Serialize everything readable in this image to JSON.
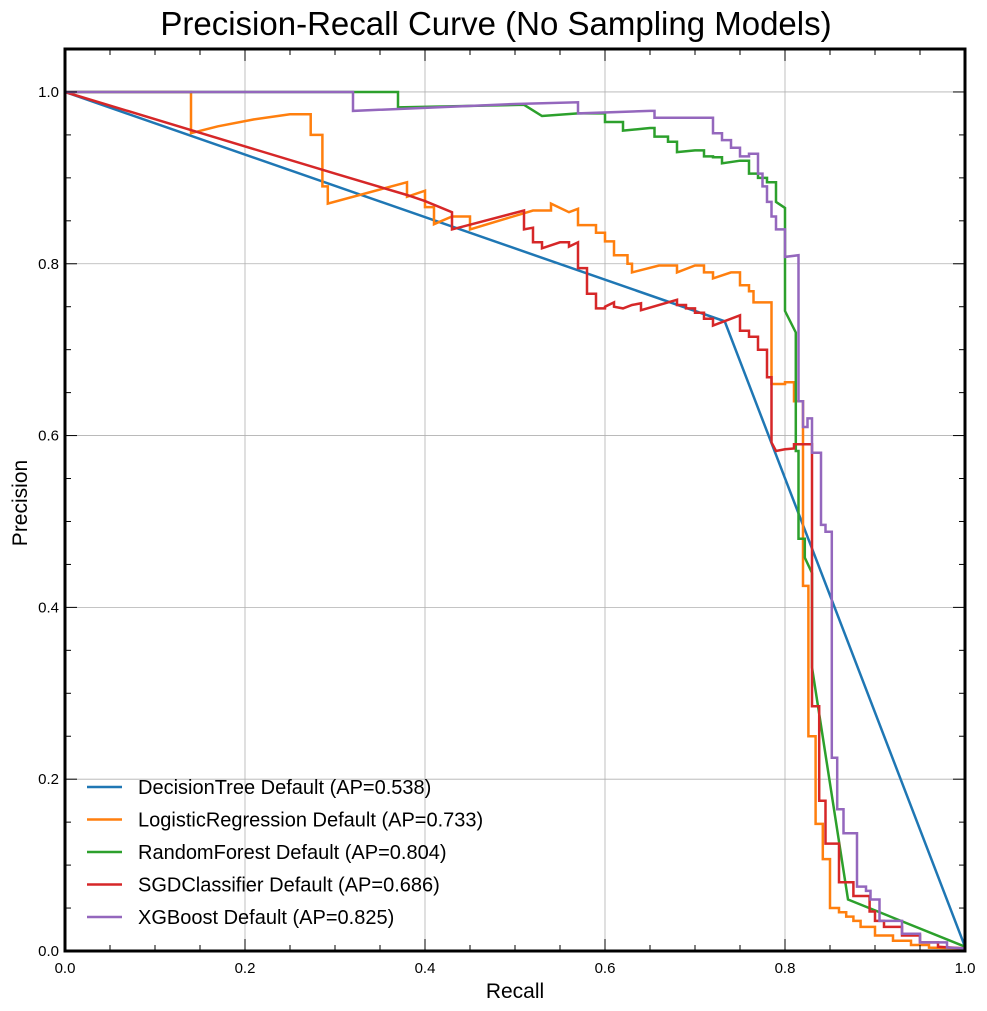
{
  "chart_data": {
    "type": "line",
    "title": "Precision-Recall Curve (No Sampling Models)",
    "xlabel": "Recall",
    "ylabel": "Precision",
    "xlim": [
      0,
      1
    ],
    "ylim": [
      0,
      1.05
    ],
    "xticks": [
      0.0,
      0.2,
      0.4,
      0.6,
      0.8,
      1.0
    ],
    "xtick_labels": [
      "0.0",
      "0.2",
      "0.4",
      "0.6",
      "0.8",
      "1.0"
    ],
    "yticks": [
      0.0,
      0.2,
      0.4,
      0.6,
      0.8,
      1.0
    ],
    "ytick_labels": [
      "0.0",
      "0.2",
      "0.4",
      "0.6",
      "0.8",
      "1.0"
    ],
    "grid": true,
    "legend_position": "lower-left",
    "series": [
      {
        "name": "DecisionTree Default (AP=0.538)",
        "color": "#1f77b4",
        "step": false,
        "points": [
          [
            0,
            1.0
          ],
          [
            0.733,
            0.733
          ],
          [
            1.0,
            0.005
          ]
        ]
      },
      {
        "name": "LogisticRegression Default (AP=0.733)",
        "color": "#ff7f0e",
        "step": true,
        "points": [
          [
            0,
            1.0
          ],
          [
            0.14,
            1.0
          ],
          [
            0.14,
            0.952
          ],
          [
            0.17,
            0.96
          ],
          [
            0.21,
            0.968
          ],
          [
            0.25,
            0.974
          ],
          [
            0.273,
            0.974
          ],
          [
            0.273,
            0.95
          ],
          [
            0.286,
            0.95
          ],
          [
            0.286,
            0.89
          ],
          [
            0.292,
            0.89
          ],
          [
            0.292,
            0.87
          ],
          [
            0.38,
            0.895
          ],
          [
            0.38,
            0.878
          ],
          [
            0.4,
            0.885
          ],
          [
            0.4,
            0.866
          ],
          [
            0.41,
            0.866
          ],
          [
            0.41,
            0.846
          ],
          [
            0.43,
            0.855
          ],
          [
            0.45,
            0.855
          ],
          [
            0.45,
            0.84
          ],
          [
            0.52,
            0.862
          ],
          [
            0.54,
            0.862
          ],
          [
            0.54,
            0.87
          ],
          [
            0.56,
            0.86
          ],
          [
            0.57,
            0.864
          ],
          [
            0.57,
            0.845
          ],
          [
            0.59,
            0.845
          ],
          [
            0.59,
            0.836
          ],
          [
            0.6,
            0.836
          ],
          [
            0.6,
            0.826
          ],
          [
            0.61,
            0.826
          ],
          [
            0.61,
            0.81
          ],
          [
            0.625,
            0.81
          ],
          [
            0.625,
            0.8
          ],
          [
            0.63,
            0.8
          ],
          [
            0.63,
            0.79
          ],
          [
            0.66,
            0.798
          ],
          [
            0.68,
            0.798
          ],
          [
            0.68,
            0.79
          ],
          [
            0.7,
            0.798
          ],
          [
            0.71,
            0.798
          ],
          [
            0.71,
            0.79
          ],
          [
            0.72,
            0.79
          ],
          [
            0.72,
            0.783
          ],
          [
            0.74,
            0.79
          ],
          [
            0.75,
            0.79
          ],
          [
            0.75,
            0.775
          ],
          [
            0.76,
            0.775
          ],
          [
            0.76,
            0.768
          ],
          [
            0.765,
            0.768
          ],
          [
            0.765,
            0.755
          ],
          [
            0.785,
            0.755
          ],
          [
            0.785,
            0.66
          ],
          [
            0.8,
            0.66
          ],
          [
            0.8,
            0.662
          ],
          [
            0.81,
            0.662
          ],
          [
            0.81,
            0.64
          ],
          [
            0.82,
            0.64
          ],
          [
            0.82,
            0.425
          ],
          [
            0.826,
            0.425
          ],
          [
            0.826,
            0.25
          ],
          [
            0.834,
            0.25
          ],
          [
            0.834,
            0.148
          ],
          [
            0.842,
            0.148
          ],
          [
            0.842,
            0.107
          ],
          [
            0.85,
            0.107
          ],
          [
            0.85,
            0.05
          ],
          [
            0.86,
            0.05
          ],
          [
            0.86,
            0.045
          ],
          [
            0.868,
            0.045
          ],
          [
            0.868,
            0.04
          ],
          [
            0.876,
            0.04
          ],
          [
            0.876,
            0.035
          ],
          [
            0.884,
            0.035
          ],
          [
            0.884,
            0.028
          ],
          [
            0.9,
            0.028
          ],
          [
            0.9,
            0.018
          ],
          [
            0.92,
            0.018
          ],
          [
            0.92,
            0.012
          ],
          [
            0.94,
            0.012
          ],
          [
            0.94,
            0.007
          ],
          [
            0.96,
            0.007
          ],
          [
            0.96,
            0.004
          ],
          [
            1.0,
            0.003
          ]
        ]
      },
      {
        "name": "RandomForest Default (AP=0.804)",
        "color": "#2ca02c",
        "step": true,
        "points": [
          [
            0,
            1.0
          ],
          [
            0.37,
            1.0
          ],
          [
            0.37,
            0.982
          ],
          [
            0.51,
            0.985
          ],
          [
            0.53,
            0.972
          ],
          [
            0.57,
            0.975
          ],
          [
            0.6,
            0.975
          ],
          [
            0.6,
            0.965
          ],
          [
            0.62,
            0.965
          ],
          [
            0.62,
            0.955
          ],
          [
            0.65,
            0.958
          ],
          [
            0.655,
            0.958
          ],
          [
            0.655,
            0.948
          ],
          [
            0.67,
            0.948
          ],
          [
            0.67,
            0.942
          ],
          [
            0.68,
            0.942
          ],
          [
            0.68,
            0.93
          ],
          [
            0.7,
            0.932
          ],
          [
            0.71,
            0.932
          ],
          [
            0.71,
            0.925
          ],
          [
            0.72,
            0.925
          ],
          [
            0.72,
            0.924
          ],
          [
            0.73,
            0.924
          ],
          [
            0.73,
            0.917
          ],
          [
            0.75,
            0.92
          ],
          [
            0.76,
            0.92
          ],
          [
            0.76,
            0.905
          ],
          [
            0.77,
            0.905
          ],
          [
            0.77,
            0.9
          ],
          [
            0.78,
            0.9
          ],
          [
            0.78,
            0.895
          ],
          [
            0.79,
            0.895
          ],
          [
            0.79,
            0.872
          ],
          [
            0.8,
            0.865
          ],
          [
            0.8,
            0.745
          ],
          [
            0.812,
            0.72
          ],
          [
            0.812,
            0.582
          ],
          [
            0.815,
            0.582
          ],
          [
            0.815,
            0.48
          ],
          [
            0.822,
            0.48
          ],
          [
            0.822,
            0.458
          ],
          [
            0.83,
            0.44
          ],
          [
            0.83,
            0.33
          ],
          [
            0.87,
            0.06
          ],
          [
            1.0,
            0.005
          ]
        ]
      },
      {
        "name": "SGDClassifier Default (AP=0.686)",
        "color": "#d62728",
        "step": true,
        "points": [
          [
            0,
            1.0
          ],
          [
            0.3,
            0.905
          ],
          [
            0.38,
            0.88
          ],
          [
            0.4,
            0.873
          ],
          [
            0.43,
            0.86
          ],
          [
            0.43,
            0.84
          ],
          [
            0.51,
            0.862
          ],
          [
            0.51,
            0.84
          ],
          [
            0.52,
            0.842
          ],
          [
            0.52,
            0.825
          ],
          [
            0.53,
            0.825
          ],
          [
            0.53,
            0.818
          ],
          [
            0.55,
            0.825
          ],
          [
            0.56,
            0.825
          ],
          [
            0.56,
            0.82
          ],
          [
            0.57,
            0.825
          ],
          [
            0.57,
            0.795
          ],
          [
            0.58,
            0.795
          ],
          [
            0.58,
            0.765
          ],
          [
            0.59,
            0.765
          ],
          [
            0.59,
            0.748
          ],
          [
            0.6,
            0.748
          ],
          [
            0.6,
            0.75
          ],
          [
            0.61,
            0.755
          ],
          [
            0.61,
            0.75
          ],
          [
            0.62,
            0.748
          ],
          [
            0.63,
            0.752
          ],
          [
            0.64,
            0.754
          ],
          [
            0.64,
            0.746
          ],
          [
            0.68,
            0.758
          ],
          [
            0.68,
            0.752
          ],
          [
            0.69,
            0.752
          ],
          [
            0.69,
            0.748
          ],
          [
            0.7,
            0.748
          ],
          [
            0.7,
            0.743
          ],
          [
            0.71,
            0.743
          ],
          [
            0.71,
            0.736
          ],
          [
            0.72,
            0.736
          ],
          [
            0.72,
            0.728
          ],
          [
            0.75,
            0.74
          ],
          [
            0.75,
            0.722
          ],
          [
            0.76,
            0.722
          ],
          [
            0.76,
            0.715
          ],
          [
            0.77,
            0.715
          ],
          [
            0.77,
            0.7
          ],
          [
            0.78,
            0.7
          ],
          [
            0.78,
            0.668
          ],
          [
            0.785,
            0.668
          ],
          [
            0.785,
            0.592
          ],
          [
            0.79,
            0.582
          ],
          [
            0.8,
            0.584
          ],
          [
            0.81,
            0.585
          ],
          [
            0.81,
            0.59
          ],
          [
            0.83,
            0.59
          ],
          [
            0.83,
            0.285
          ],
          [
            0.838,
            0.285
          ],
          [
            0.838,
            0.175
          ],
          [
            0.845,
            0.175
          ],
          [
            0.845,
            0.125
          ],
          [
            0.86,
            0.125
          ],
          [
            0.86,
            0.08
          ],
          [
            0.876,
            0.08
          ],
          [
            0.876,
            0.064
          ],
          [
            0.894,
            0.064
          ],
          [
            0.894,
            0.046
          ],
          [
            0.9,
            0.046
          ],
          [
            0.9,
            0.035
          ],
          [
            0.91,
            0.035
          ],
          [
            0.91,
            0.028
          ],
          [
            0.93,
            0.028
          ],
          [
            0.93,
            0.018
          ],
          [
            0.95,
            0.018
          ],
          [
            0.95,
            0.01
          ],
          [
            0.97,
            0.01
          ],
          [
            0.97,
            0.005
          ],
          [
            1.0,
            0.003
          ]
        ]
      },
      {
        "name": "XGBoost Default (AP=0.825)",
        "color": "#9467bd",
        "step": true,
        "points": [
          [
            0,
            1.0
          ],
          [
            0.32,
            1.0
          ],
          [
            0.32,
            0.978
          ],
          [
            0.5,
            0.986
          ],
          [
            0.57,
            0.988
          ],
          [
            0.57,
            0.975
          ],
          [
            0.65,
            0.978
          ],
          [
            0.655,
            0.978
          ],
          [
            0.655,
            0.97
          ],
          [
            0.72,
            0.97
          ],
          [
            0.72,
            0.952
          ],
          [
            0.73,
            0.952
          ],
          [
            0.73,
            0.944
          ],
          [
            0.74,
            0.944
          ],
          [
            0.74,
            0.935
          ],
          [
            0.75,
            0.935
          ],
          [
            0.75,
            0.925
          ],
          [
            0.76,
            0.925
          ],
          [
            0.76,
            0.928
          ],
          [
            0.77,
            0.928
          ],
          [
            0.77,
            0.905
          ],
          [
            0.775,
            0.905
          ],
          [
            0.775,
            0.89
          ],
          [
            0.78,
            0.89
          ],
          [
            0.78,
            0.872
          ],
          [
            0.785,
            0.872
          ],
          [
            0.785,
            0.855
          ],
          [
            0.79,
            0.855
          ],
          [
            0.79,
            0.84
          ],
          [
            0.8,
            0.84
          ],
          [
            0.8,
            0.808
          ],
          [
            0.815,
            0.81
          ],
          [
            0.815,
            0.64
          ],
          [
            0.82,
            0.64
          ],
          [
            0.82,
            0.61
          ],
          [
            0.825,
            0.61
          ],
          [
            0.825,
            0.62
          ],
          [
            0.83,
            0.62
          ],
          [
            0.83,
            0.58
          ],
          [
            0.84,
            0.58
          ],
          [
            0.84,
            0.496
          ],
          [
            0.845,
            0.496
          ],
          [
            0.845,
            0.488
          ],
          [
            0.852,
            0.488
          ],
          [
            0.852,
            0.225
          ],
          [
            0.858,
            0.225
          ],
          [
            0.858,
            0.165
          ],
          [
            0.865,
            0.165
          ],
          [
            0.865,
            0.137
          ],
          [
            0.88,
            0.137
          ],
          [
            0.88,
            0.075
          ],
          [
            0.89,
            0.075
          ],
          [
            0.89,
            0.07
          ],
          [
            0.895,
            0.07
          ],
          [
            0.895,
            0.06
          ],
          [
            0.905,
            0.06
          ],
          [
            0.905,
            0.035
          ],
          [
            0.93,
            0.035
          ],
          [
            0.93,
            0.02
          ],
          [
            0.95,
            0.02
          ],
          [
            0.95,
            0.01
          ],
          [
            0.98,
            0.01
          ],
          [
            0.98,
            0.004
          ],
          [
            1.0,
            0.003
          ]
        ]
      }
    ]
  }
}
